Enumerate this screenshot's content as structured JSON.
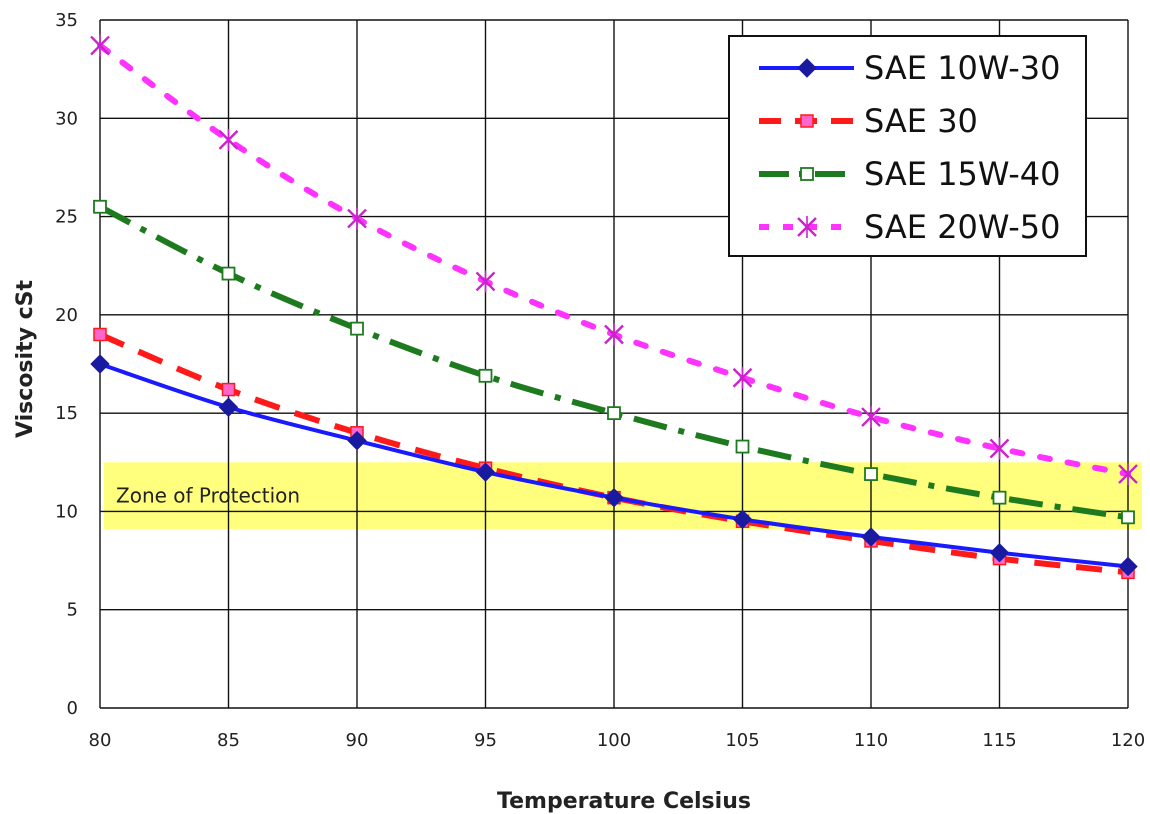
{
  "chart_data": {
    "type": "line",
    "title": "",
    "xlabel": "Temperature Celsius",
    "ylabel": "Viscosity cSt",
    "x": [
      80,
      85,
      90,
      95,
      100,
      105,
      110,
      115,
      120
    ],
    "xlim": [
      80,
      120
    ],
    "ylim": [
      0,
      35
    ],
    "x_ticks": [
      80,
      85,
      90,
      95,
      100,
      105,
      110,
      115,
      120
    ],
    "y_ticks": [
      0,
      5,
      10,
      15,
      20,
      25,
      30,
      35
    ],
    "grid": true,
    "legend_position": "top-right",
    "series": [
      {
        "name": "SAE 10W-30",
        "color": "#1a1aff",
        "dash": "solid",
        "marker": "diamond",
        "values": [
          17.5,
          15.3,
          13.6,
          12.0,
          10.7,
          9.6,
          8.7,
          7.9,
          7.2
        ]
      },
      {
        "name": "SAE 30",
        "color": "#ff1a1a",
        "dash": "dashed",
        "marker": "square",
        "values": [
          19.0,
          16.2,
          14.0,
          12.2,
          10.7,
          9.5,
          8.5,
          7.6,
          6.9
        ]
      },
      {
        "name": "SAE 15W-40",
        "color": "#1e7a1e",
        "dash": "dashdot",
        "marker": "hollow-square",
        "values": [
          25.5,
          22.1,
          19.3,
          16.9,
          15.0,
          13.3,
          11.9,
          10.7,
          9.7
        ]
      },
      {
        "name": "SAE 20W-50",
        "color": "#ff33ff",
        "dash": "dotted",
        "marker": "x",
        "values": [
          33.7,
          28.9,
          24.9,
          21.7,
          19.0,
          16.8,
          14.8,
          13.2,
          11.9
        ]
      }
    ],
    "annotations": [
      {
        "type": "band",
        "label": "Zone of Protection",
        "y_range": [
          9.1,
          12.5
        ],
        "color": "#ffff66"
      }
    ]
  }
}
